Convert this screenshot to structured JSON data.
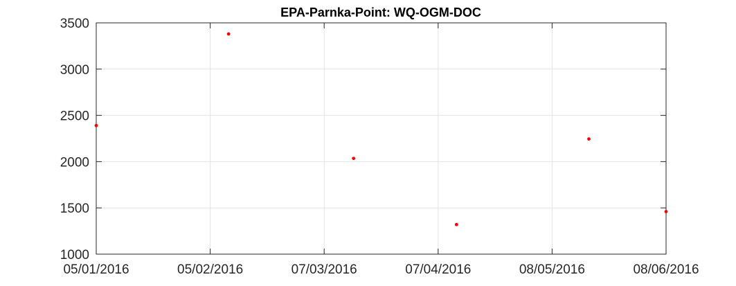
{
  "chart_data": {
    "type": "scatter",
    "title": "EPA-Parnka-Point: WQ-OGM-DOC",
    "xlabel": "",
    "ylabel": "",
    "x_type": "date",
    "xlim": [
      "2016-01-05",
      "2016-06-08"
    ],
    "ylim": [
      1000,
      3500
    ],
    "x_ticks": [
      "2016-01-05",
      "2016-02-05",
      "2016-03-07",
      "2016-04-07",
      "2016-05-08",
      "2016-06-08"
    ],
    "x_tick_labels": [
      "05/01/2016",
      "05/02/2016",
      "07/03/2016",
      "07/04/2016",
      "08/05/2016",
      "08/06/2016"
    ],
    "y_ticks": [
      1000,
      1500,
      2000,
      2500,
      3000,
      3500
    ],
    "y_tick_labels": [
      "1000",
      "1500",
      "2000",
      "2500",
      "3000",
      "3500"
    ],
    "grid": true,
    "marker_color": "#ff0000",
    "series": [
      {
        "points": [
          {
            "x": "2016-01-05",
            "y": 2390
          },
          {
            "x": "2016-02-10",
            "y": 3380
          },
          {
            "x": "2016-03-15",
            "y": 2035
          },
          {
            "x": "2016-04-12",
            "y": 1320
          },
          {
            "x": "2016-05-18",
            "y": 2245
          },
          {
            "x": "2016-06-08",
            "y": 1460
          }
        ]
      }
    ]
  }
}
